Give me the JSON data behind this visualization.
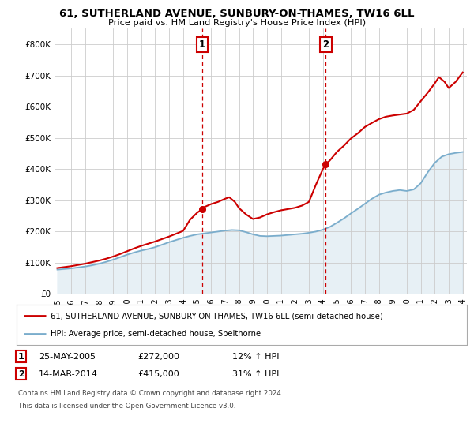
{
  "title_line1": "61, SUTHERLAND AVENUE, SUNBURY-ON-THAMES, TW16 6LL",
  "title_line2": "Price paid vs. HM Land Registry's House Price Index (HPI)",
  "ylim": [
    0,
    850000
  ],
  "yticks": [
    0,
    100000,
    200000,
    300000,
    400000,
    500000,
    600000,
    700000,
    800000
  ],
  "ytick_labels": [
    "£0",
    "£100K",
    "£200K",
    "£300K",
    "£400K",
    "£500K",
    "£600K",
    "£700K",
    "£800K"
  ],
  "purchase1": {
    "price": 272000,
    "hpi_pct": "12% ↑ HPI",
    "date_str": "25-MAY-2005",
    "year": 2005.37
  },
  "purchase2": {
    "price": 415000,
    "hpi_pct": "31% ↑ HPI",
    "date_str": "14-MAR-2014",
    "year": 2014.2
  },
  "line_color_price": "#cc0000",
  "line_color_hpi": "#7aadcc",
  "legend_label1": "61, SUTHERLAND AVENUE, SUNBURY-ON-THAMES, TW16 6LL (semi-detached house)",
  "legend_label2": "HPI: Average price, semi-detached house, Spelthorne",
  "footnote1": "Contains HM Land Registry data © Crown copyright and database right 2024.",
  "footnote2": "This data is licensed under the Open Government Licence v3.0.",
  "background_color": "#ffffff",
  "grid_color": "#cccccc",
  "hpi_x": [
    1995,
    1995.5,
    1996,
    1996.5,
    1997,
    1997.5,
    1998,
    1998.5,
    1999,
    1999.5,
    2000,
    2000.5,
    2001,
    2001.5,
    2002,
    2002.5,
    2003,
    2003.5,
    2004,
    2004.5,
    2005,
    2005.5,
    2006,
    2006.5,
    2007,
    2007.5,
    2008,
    2008.5,
    2009,
    2009.5,
    2010,
    2010.5,
    2011,
    2011.5,
    2012,
    2012.5,
    2013,
    2013.5,
    2014,
    2014.5,
    2015,
    2015.5,
    2016,
    2016.5,
    2017,
    2017.5,
    2018,
    2018.5,
    2019,
    2019.5,
    2020,
    2020.5,
    2021,
    2021.5,
    2022,
    2022.5,
    2023,
    2023.5,
    2024
  ],
  "hpi_y": [
    78000,
    80000,
    82000,
    85000,
    88000,
    92000,
    97000,
    103000,
    110000,
    118000,
    126000,
    133000,
    139000,
    144000,
    150000,
    158000,
    166000,
    173000,
    180000,
    186000,
    191000,
    194000,
    197000,
    200000,
    203000,
    205000,
    204000,
    198000,
    191000,
    186000,
    185000,
    186000,
    187000,
    189000,
    191000,
    193000,
    196000,
    200000,
    206000,
    215000,
    228000,
    242000,
    258000,
    273000,
    289000,
    305000,
    318000,
    325000,
    330000,
    333000,
    330000,
    335000,
    355000,
    390000,
    420000,
    440000,
    448000,
    452000,
    455000
  ],
  "price_x": [
    1995,
    1995.5,
    1996,
    1996.5,
    1997,
    1997.5,
    1998,
    1998.5,
    1999,
    1999.5,
    2000,
    2000.5,
    2001,
    2001.5,
    2002,
    2002.5,
    2003,
    2003.5,
    2004,
    2004.5,
    2005,
    2005.37,
    2005.5,
    2006,
    2006.5,
    2007,
    2007.3,
    2007.7,
    2008,
    2008.5,
    2009,
    2009.5,
    2010,
    2010.5,
    2011,
    2011.5,
    2012,
    2012.5,
    2013,
    2013.5,
    2014,
    2014.2,
    2014.5,
    2015,
    2015.5,
    2016,
    2016.5,
    2017,
    2017.5,
    2018,
    2018.5,
    2019,
    2019.5,
    2020,
    2020.5,
    2021,
    2021.5,
    2022,
    2022.3,
    2022.7,
    2023,
    2023.5,
    2024
  ],
  "price_y": [
    83000,
    86000,
    89000,
    93000,
    97000,
    102000,
    107000,
    113000,
    120000,
    128000,
    137000,
    146000,
    154000,
    161000,
    168000,
    176000,
    184000,
    193000,
    202000,
    238000,
    260000,
    272000,
    278000,
    288000,
    295000,
    305000,
    310000,
    295000,
    275000,
    255000,
    240000,
    245000,
    255000,
    262000,
    268000,
    272000,
    276000,
    283000,
    295000,
    350000,
    400000,
    415000,
    428000,
    455000,
    475000,
    498000,
    515000,
    535000,
    548000,
    560000,
    568000,
    572000,
    575000,
    578000,
    590000,
    618000,
    645000,
    675000,
    695000,
    680000,
    660000,
    680000,
    710000
  ],
  "xtick_years": [
    1995,
    1996,
    1997,
    1998,
    1999,
    2000,
    2001,
    2002,
    2003,
    2004,
    2005,
    2006,
    2007,
    2008,
    2009,
    2010,
    2011,
    2012,
    2013,
    2014,
    2015,
    2016,
    2017,
    2018,
    2019,
    2020,
    2021,
    2022,
    2023,
    2024
  ]
}
